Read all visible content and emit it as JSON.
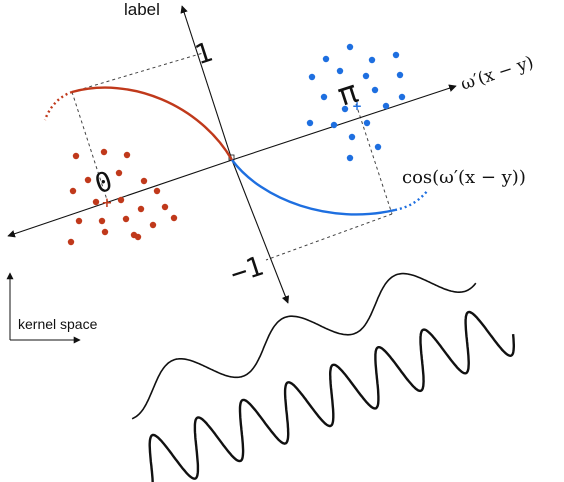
{
  "diagram": {
    "axis_labels": {
      "vertical": "label",
      "projection": "ω′(x − y)",
      "cosine": "cos(ω′(x − y))",
      "inset": "kernel space"
    },
    "tick_labels": {
      "one": "1",
      "minus_one": "−1",
      "zero": "0",
      "pi": "π"
    },
    "colors": {
      "red": "#c0391b",
      "blue": "#1e6fe0",
      "ink": "#111111",
      "dashed": "#444444"
    }
  }
}
